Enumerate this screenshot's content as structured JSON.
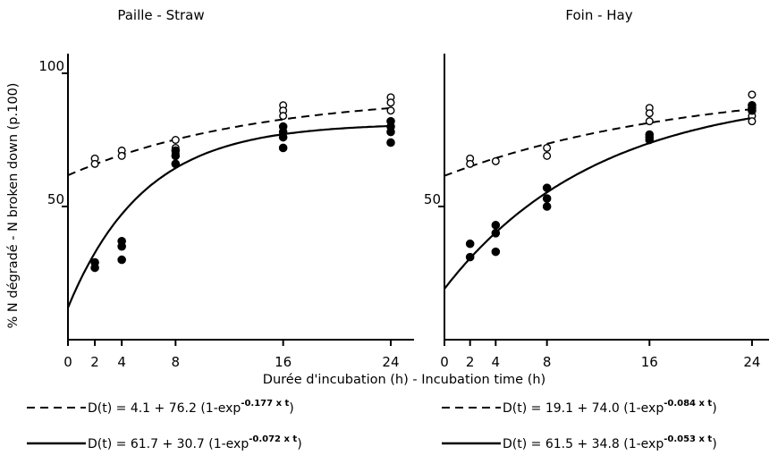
{
  "chart_data": [
    {
      "type": "scatter",
      "title": "Paille - Straw",
      "xlim": [
        0,
        25
      ],
      "ylim": [
        0,
        100
      ],
      "x_ticks": [
        "0",
        "2",
        "4",
        "8",
        "16",
        "24"
      ],
      "y_ticks": [
        "100",
        "50"
      ],
      "series": [
        {
          "marker": "open",
          "points": [
            [
              2,
              68
            ],
            [
              2,
              66
            ],
            [
              4,
              71
            ],
            [
              4,
              69
            ],
            [
              8,
              75
            ],
            [
              8,
              72
            ],
            [
              8,
              70
            ],
            [
              16,
              88
            ],
            [
              16,
              86
            ],
            [
              16,
              84
            ],
            [
              24,
              91
            ],
            [
              24,
              89
            ],
            [
              24,
              86
            ]
          ]
        },
        {
          "marker": "filled",
          "points": [
            [
              2,
              29
            ],
            [
              2,
              27
            ],
            [
              4,
              37
            ],
            [
              4,
              35
            ],
            [
              4,
              30
            ],
            [
              8,
              71
            ],
            [
              8,
              69
            ],
            [
              8,
              66
            ],
            [
              16,
              80
            ],
            [
              16,
              78
            ],
            [
              16,
              76
            ],
            [
              16,
              72
            ],
            [
              24,
              82
            ],
            [
              24,
              80
            ],
            [
              24,
              78
            ],
            [
              24,
              74
            ]
          ]
        }
      ],
      "curves": [
        {
          "style": "dashed",
          "a": 61.7,
          "b": 30.7,
          "c": 0.072,
          "equation": "D(t) = 4.1 + 76.2 (1-exp",
          "exponent": "-0.177 x t",
          "close": ")"
        },
        {
          "style": "solid",
          "a": 12.0,
          "b": 69.2,
          "c": 0.177,
          "equation": "D(t) = 61.7 + 30.7 (1-exp",
          "exponent": "-0.072 x t",
          "close": ")"
        }
      ]
    },
    {
      "type": "scatter",
      "title": "Foin - Hay",
      "xlim": [
        0,
        25
      ],
      "ylim": [
        0,
        100
      ],
      "x_ticks": [
        "0",
        "2",
        "4",
        "8",
        "16",
        "24"
      ],
      "y_ticks": [
        "50"
      ],
      "series": [
        {
          "marker": "open",
          "points": [
            [
              2,
              68
            ],
            [
              2,
              66
            ],
            [
              4,
              67
            ],
            [
              8,
              72
            ],
            [
              8,
              69
            ],
            [
              16,
              87
            ],
            [
              16,
              85
            ],
            [
              16,
              82
            ],
            [
              24,
              92
            ],
            [
              24,
              88
            ],
            [
              24,
              86
            ],
            [
              24,
              84
            ],
            [
              24,
              82
            ]
          ]
        },
        {
          "marker": "filled",
          "points": [
            [
              2,
              36
            ],
            [
              2,
              31
            ],
            [
              4,
              43
            ],
            [
              4,
              40
            ],
            [
              4,
              33
            ],
            [
              8,
              57
            ],
            [
              8,
              53
            ],
            [
              8,
              50
            ],
            [
              16,
              77
            ],
            [
              16,
              76
            ],
            [
              16,
              75
            ],
            [
              24,
              88
            ],
            [
              24,
              87
            ],
            [
              24,
              86
            ]
          ]
        }
      ],
      "curves": [
        {
          "style": "dashed",
          "a": 61.5,
          "b": 34.8,
          "c": 0.053,
          "equation": "D(t) = 19.1 + 74.0 (1-exp",
          "exponent": "-0.084 x t",
          "close": ")"
        },
        {
          "style": "solid",
          "a": 19.1,
          "b": 74.0,
          "c": 0.084,
          "equation": "D(t) = 61.5 + 34.8 (1-exp",
          "exponent": "-0.053 x t",
          "close": ")"
        }
      ]
    }
  ],
  "ylabel": "% N dégradé - N broken down (p.100)",
  "xlabel": "Durée d'incubation (h) - Incubation time (h)"
}
